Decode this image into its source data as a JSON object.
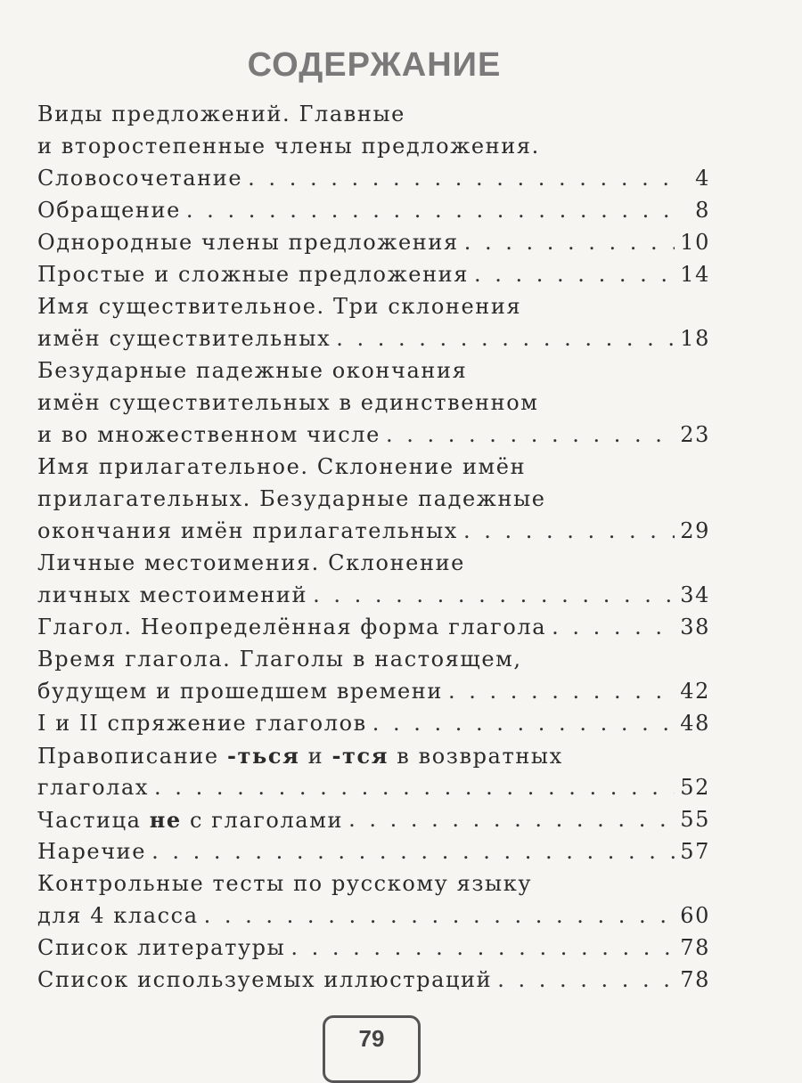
{
  "title": "СОДЕРЖАНИЕ",
  "entries": [
    {
      "lines": [
        "Виды предложений. Главные",
        "и второстепенные члены предложения.",
        "Словосочетание"
      ],
      "page": "4"
    },
    {
      "lines": [
        "Обращение"
      ],
      "page": "8"
    },
    {
      "lines": [
        "Однородные члены предложения"
      ],
      "page": "10"
    },
    {
      "lines": [
        "Простые и сложные предложения"
      ],
      "page": "14"
    },
    {
      "lines": [
        "Имя существительное. Три склонения",
        "имён существительных"
      ],
      "page": "18"
    },
    {
      "lines": [
        "Безударные падежные окончания",
        "имён существительных в единственном",
        "и во множественном числе"
      ],
      "page": "23"
    },
    {
      "lines": [
        "Имя прилагательное. Склонение имён",
        "прилагательных. Безударные падежные",
        "окончания имён прилагательных"
      ],
      "page": "29"
    },
    {
      "lines": [
        "Личные местоимения. Склонение",
        "личных местоимений"
      ],
      "page": "34"
    },
    {
      "lines": [
        "Глагол. Неопределённая форма глагола"
      ],
      "page": "38"
    },
    {
      "lines": [
        "Время глагола. Глаголы в настоящем,",
        "будущем и прошедшем времени"
      ],
      "page": "42"
    },
    {
      "lines": [
        "I и II спряжение глаголов"
      ],
      "page": "48"
    },
    {
      "parts": [
        "Правописание ",
        "-ться",
        " и ",
        "-тся",
        " в возвратных"
      ],
      "lines": [
        "глаголах"
      ],
      "page": "52"
    },
    {
      "parts": [
        "Частица ",
        "не",
        " с глаголами"
      ],
      "page": "55"
    },
    {
      "lines": [
        "Наречие"
      ],
      "page": "57"
    },
    {
      "lines": [
        "Контрольные тесты по русскому языку",
        "для 4 класса"
      ],
      "page": "60"
    },
    {
      "lines": [
        "Список литературы"
      ],
      "page": "78"
    },
    {
      "lines": [
        "Список используемых иллюстраций"
      ],
      "page": "78"
    }
  ],
  "footer": {
    "page_number": "79"
  }
}
